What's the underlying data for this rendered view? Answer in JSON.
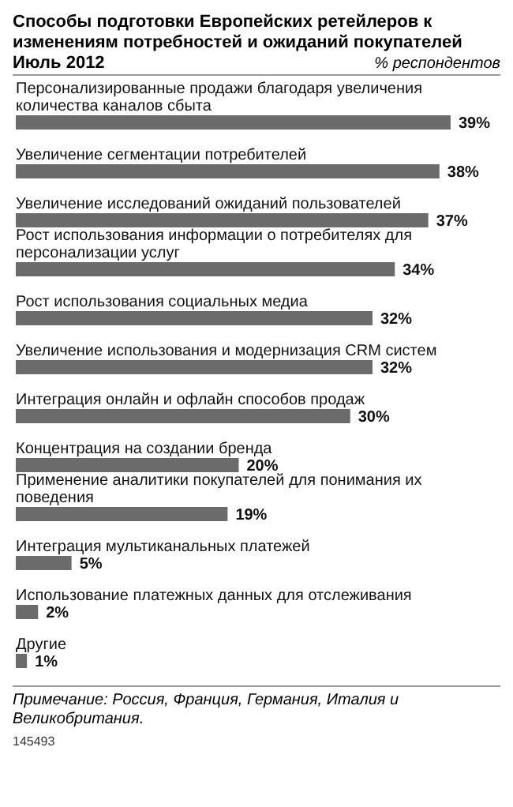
{
  "chart_data": {
    "type": "bar",
    "orientation": "horizontal",
    "title": "Способы подготовки Европейских ретейлеров к изменениям потребностей и ожиданий покупателей",
    "subtitle": "Июль 2012",
    "categories": [
      "Персонализированные продажи благодаря увеличения количества каналов сбыта",
      "Увеличение сегментации потребителей",
      "Увеличение исследований ожиданий пользователей",
      "Рост использования информации о потребителях для персонализации услуг",
      "Рост использования социальных медиа",
      "Увеличение использования и модернизация CRM систем",
      "Интеграция онлайн и офлайн способов продаж",
      "Концентрация на создании бренда",
      "Применение аналитики покупателей для понимания их поведения",
      "Интеграция мультиканальных платежей",
      "Использование платежных данных для отслеживания",
      "Другие"
    ],
    "values": [
      39,
      38,
      37,
      34,
      32,
      32,
      30,
      20,
      19,
      5,
      2,
      1
    ],
    "value_labels": [
      "39%",
      "38%",
      "37%",
      "34%",
      "32%",
      "32%",
      "30%",
      "20%",
      "19%",
      "5%",
      "2%",
      "1%"
    ],
    "color": "#6b6b6b",
    "annotations": [
      "% респондентов",
      "Примечание: Россия, Франция, Германия, Италия и Великобритания.",
      "145493"
    ]
  }
}
